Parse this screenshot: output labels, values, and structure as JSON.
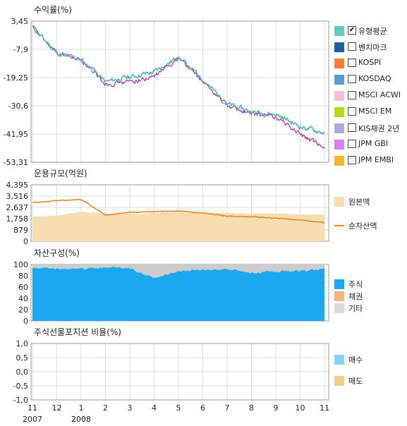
{
  "colors": {
    "return_line": "#a3169a",
    "benchmark_line": "#55b3b0",
    "principal_fill": "#f6ddb0",
    "net_assets_line": "#e9821f",
    "stock_fill": "#1aa8f0",
    "other_fill": "#cccccc",
    "grid": "#dddddd"
  },
  "legend_returns": [
    {
      "label": "유형평균",
      "color": "#66ccbb",
      "checked": true
    },
    {
      "label": "벤치마크",
      "color": "#1f5e9e",
      "checked": false
    },
    {
      "label": "KOSPI",
      "color": "#ff7a3b",
      "checked": false
    },
    {
      "label": "KOSDAQ",
      "color": "#5b9bd5",
      "checked": false
    },
    {
      "label": "MSCI ACWI",
      "color": "#f7bcd8",
      "checked": false
    },
    {
      "label": "MSCI EM",
      "color": "#b7d80e",
      "checked": false
    },
    {
      "label": "KIS채권 2년",
      "color": "#b4a7e0",
      "checked": false
    },
    {
      "label": "JPM GBI",
      "color": "#d97ef3",
      "checked": false
    },
    {
      "label": "JPM EMBI",
      "color": "#f8b62e",
      "checked": false
    }
  ],
  "legend_aum": [
    {
      "label": "원본액",
      "kind": "box",
      "color": "#f6ddb0"
    },
    {
      "label": "순자산액",
      "kind": "line",
      "color": "#e9821f"
    }
  ],
  "legend_comp": [
    {
      "label": "주식",
      "color": "#1aa8f0"
    },
    {
      "label": "채권",
      "color": "#f3b37c"
    },
    {
      "label": "기타",
      "color": "#dedbd2"
    }
  ],
  "legend_futures": [
    {
      "label": "매수",
      "color": "#8fd0f7"
    },
    {
      "label": "매도",
      "color": "#efce8a"
    }
  ],
  "x_axis": {
    "month_labels": [
      "11",
      "12",
      "1",
      "2",
      "3",
      "4",
      "5",
      "6",
      "7",
      "8",
      "9",
      "10",
      "11"
    ],
    "year_labels": [
      {
        "label": "2007",
        "month_index": 0
      },
      {
        "label": "2008",
        "month_index": 2
      }
    ]
  },
  "chart_data": [
    {
      "type": "line",
      "title": "수익률(%)",
      "yticks": [
        "3,45",
        "-7,9",
        "-19,25",
        "-30,6",
        "-41,95",
        "-53,31"
      ],
      "ylim": [
        -53.31,
        3.45
      ],
      "x": [
        "2007-11",
        "2007-12",
        "2008-01",
        "2008-02",
        "2008-03",
        "2008-04",
        "2008-05",
        "2008-06",
        "2008-07",
        "2008-08",
        "2008-09",
        "2008-10",
        "2008-11"
      ],
      "series": [
        {
          "values": [
            1.0,
            -9.5,
            -12.0,
            -21.0,
            -19.0,
            -17.0,
            -11.0,
            -20.0,
            -30.0,
            -33.0,
            -34.0,
            -39.0,
            -41.5
          ]
        },
        {
          "values": [
            1.0,
            -9.5,
            -12.0,
            -21.5,
            -21.0,
            -19.0,
            -11.0,
            -21.0,
            -30.5,
            -34.0,
            -35.0,
            -42.0,
            -48.0
          ]
        }
      ]
    },
    {
      "type": "area",
      "title": "운용규모(억원)",
      "yticks": [
        "4,395",
        "3,516",
        "2,637",
        "1,758",
        "879",
        "0"
      ],
      "ylim": [
        0,
        4395
      ],
      "x": [
        "2007-11",
        "2007-12",
        "2008-01",
        "2008-02",
        "2008-03",
        "2008-04",
        "2008-05",
        "2008-06",
        "2008-07",
        "2008-08",
        "2008-09",
        "2008-10",
        "2008-11"
      ],
      "series": [
        {
          "name": "원본액",
          "values": [
            1900,
            2000,
            2300,
            2150,
            2150,
            2200,
            2300,
            2250,
            2200,
            2150,
            2150,
            2100,
            2050
          ]
        },
        {
          "name": "순자산액",
          "values": [
            3000,
            3150,
            3250,
            2050,
            2250,
            2300,
            2350,
            2200,
            1950,
            1900,
            1800,
            1650,
            1450
          ]
        }
      ]
    },
    {
      "type": "area",
      "title": "자산구성(%)",
      "yticks": [
        "100",
        "80",
        "60",
        "40",
        "20",
        "0"
      ],
      "ylim": [
        0,
        100
      ],
      "x": [
        "2007-11",
        "2007-12",
        "2008-01",
        "2008-02",
        "2008-03",
        "2008-04",
        "2008-05",
        "2008-06",
        "2008-07",
        "2008-08",
        "2008-09",
        "2008-10",
        "2008-11"
      ],
      "series": [
        {
          "name": "주식",
          "values": [
            94,
            92,
            93,
            95,
            93,
            76,
            88,
            90,
            92,
            85,
            87,
            88,
            93
          ]
        },
        {
          "name": "기타",
          "values": [
            6,
            8,
            7,
            5,
            7,
            24,
            12,
            10,
            8,
            15,
            13,
            12,
            7
          ]
        }
      ]
    },
    {
      "type": "line",
      "title": "주식선물포지션 비율(%)",
      "yticks": [
        "1,0",
        "0,5",
        "0,0",
        "-0,5",
        "-1,0"
      ],
      "ylim": [
        -1.0,
        1.0
      ],
      "series": []
    }
  ]
}
